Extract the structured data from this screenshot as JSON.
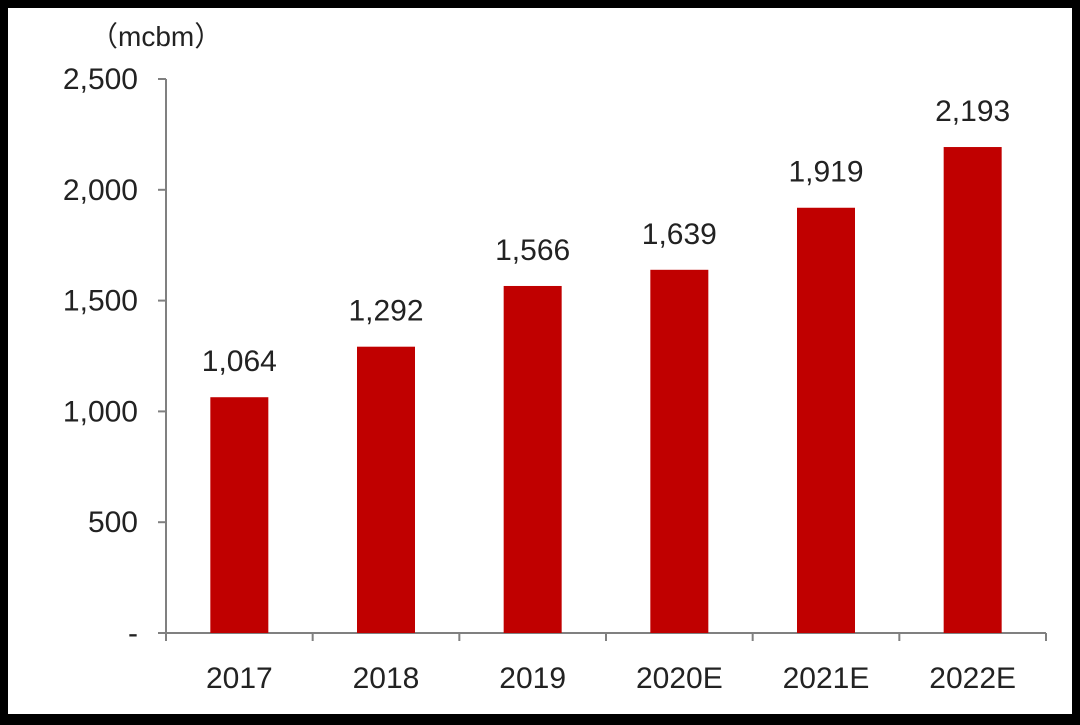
{
  "chart_data": {
    "type": "bar",
    "unit_label": "（mcbm）",
    "categories": [
      "2017",
      "2018",
      "2019",
      "2020E",
      "2021E",
      "2022E"
    ],
    "values": [
      1064,
      1292,
      1566,
      1639,
      1919,
      2193
    ],
    "data_labels": [
      "1,064",
      "1,292",
      "1,566",
      "1,639",
      "1,919",
      "2,193"
    ],
    "y_ticks": [
      0,
      500,
      1000,
      1500,
      2000,
      2500
    ],
    "y_tick_labels": [
      "-",
      "500",
      "1,000",
      "1,500",
      "2,000",
      "2,500"
    ],
    "ylim": [
      0,
      2500
    ],
    "grid": false,
    "legend": "none",
    "bar_color": "#c00000",
    "axis_color": "#808080"
  }
}
